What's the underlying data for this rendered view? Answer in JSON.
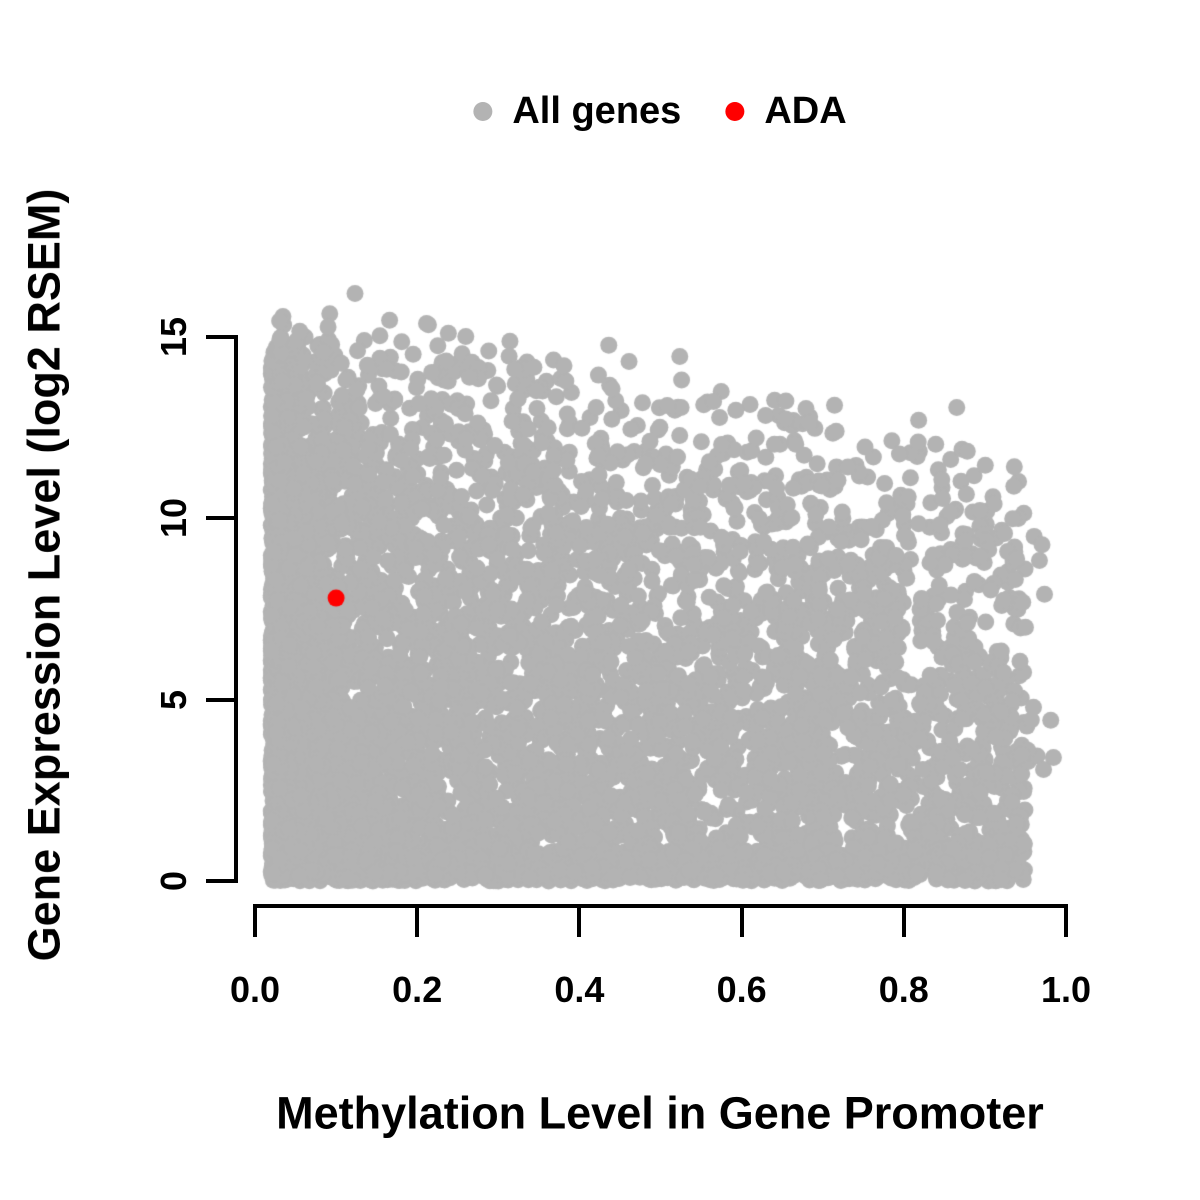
{
  "chart_data": {
    "type": "scatter",
    "title": "",
    "xlabel": "Methylation Level in Gene Promoter",
    "ylabel": "Gene Expression Level (log2 RSEM)",
    "xlim": [
      0,
      1
    ],
    "ylim": [
      0,
      17.5
    ],
    "grid": false,
    "x_ticks": [
      0.0,
      0.2,
      0.4,
      0.6,
      0.8,
      1.0
    ],
    "x_tick_labels": [
      "0.0",
      "0.2",
      "0.4",
      "0.6",
      "0.8",
      "1.0"
    ],
    "y_ticks": [
      0,
      5,
      10,
      15
    ],
    "y_tick_labels": [
      "0",
      "5",
      "10",
      "15"
    ],
    "colors": {
      "all_genes": "#b3b3b3",
      "ada": "#ff0000",
      "axis": "#000000"
    },
    "point_radius_px": 8.5,
    "legend": {
      "position": "top",
      "items": [
        {
          "label": "All genes",
          "color": "#b3b3b3"
        },
        {
          "label": "ADA",
          "color": "#ff0000"
        }
      ]
    },
    "series": [
      {
        "name": "All genes",
        "role": "background-cloud",
        "n_points_approx": 6835,
        "points_model": {
          "seed": 7,
          "description": "dense anticorrelated cloud: expression upper envelope ~14.6 at methylation 0 declining to ~11.4 at 1.0; solid mass down to y=0; sharp left edge at x~0.02; right fringe to x~0.985",
          "components": {
            "bulk": {
              "kind": "bulk",
              "n": 5200,
              "x_min": 0.02,
              "x_span": 0.93,
              "x_pow": 1.6,
              "env_base": 14.6,
              "env_slope": -3.2,
              "env_noise": 0.45,
              "y_pow": 0.7
            },
            "bottom": {
              "kind": "bottom",
              "n": 900,
              "x_min": 0.02,
              "x_span": 0.93,
              "x_pow": 1.2,
              "y_sigma": 0.5,
              "y_max": 1.5
            },
            "left": {
              "kind": "left",
              "n": 600,
              "x_min": 0.02,
              "x_sigma": 0.022,
              "y_max": 14.8,
              "y_pow": 0.85
            },
            "upper": {
              "kind": "upper",
              "n": 120,
              "x_min": 0.03,
              "x_span": 0.85,
              "x_pow": 2,
              "env_base": 14.6,
              "env_slope": -3.2,
              "exp_scale": 0.6,
              "y_cap": 17.1
            },
            "right": {
              "kind": "right",
              "n": 15,
              "x_min": 0.94,
              "x_span": 0.045,
              "y_max": 11
            }
          }
        }
      },
      {
        "name": "ADA",
        "points": [
          [
            0.1,
            7.8
          ]
        ]
      }
    ]
  }
}
